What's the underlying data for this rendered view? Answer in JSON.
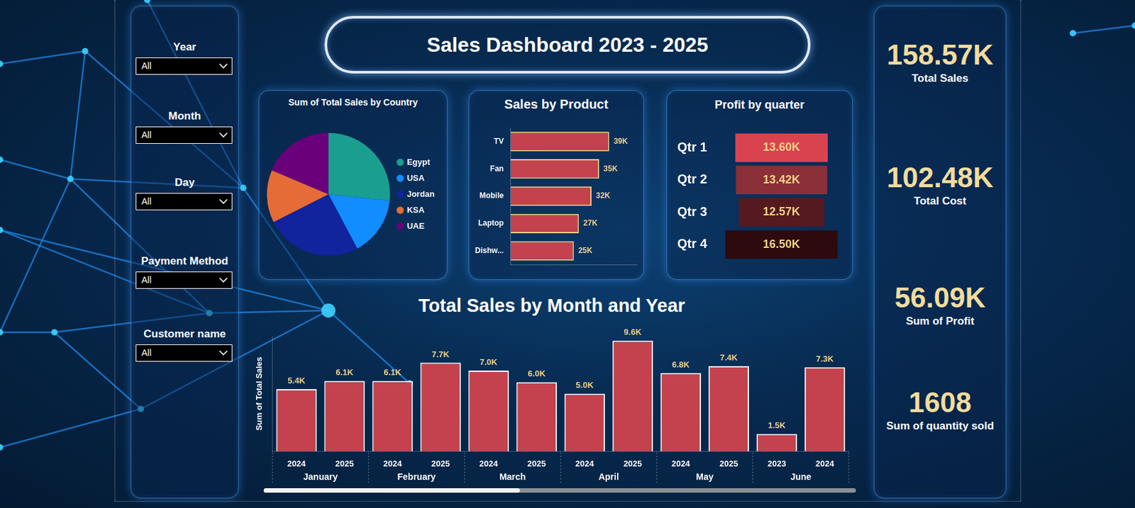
{
  "header": {
    "title": "Sales Dashboard 2023 - 2025"
  },
  "filters": [
    {
      "label": "Year",
      "value": "All"
    },
    {
      "label": "Month",
      "value": "All"
    },
    {
      "label": "Day",
      "value": "All"
    },
    {
      "label": "Payment Method",
      "value": "All"
    },
    {
      "label": "Customer name",
      "value": "All"
    }
  ],
  "kpis": [
    {
      "value": "158.57K",
      "label": "Total Sales"
    },
    {
      "value": "102.48K",
      "label": "Total Cost"
    },
    {
      "value": "56.09K",
      "label": "Sum of Profit"
    },
    {
      "value": "1608",
      "label": "Sum of quantity sold"
    }
  ],
  "chart_data": [
    {
      "type": "pie",
      "title": "Sum of Total Sales by Country",
      "categories": [
        "Egypt",
        "USA",
        "Jordan",
        "KSA",
        "UAE"
      ],
      "values": [
        42.3,
        24.7,
        40.1,
        22.0,
        29.5
      ],
      "colors": [
        "#1a9e8f",
        "#118dff",
        "#12239e",
        "#e66c37",
        "#6b007b"
      ],
      "legend": "right"
    },
    {
      "type": "bar",
      "title": "Sales by Product",
      "orientation": "horizontal",
      "categories": [
        "TV",
        "Fan",
        "Mobile",
        "Laptop",
        "Dishw..."
      ],
      "values": [
        39,
        35,
        32,
        27,
        25
      ],
      "value_labels": [
        "39K",
        "35K",
        "32K",
        "27K",
        "25K"
      ],
      "color": "#c4424e",
      "xlim": [
        0,
        50
      ],
      "tick_labels": "y",
      "grid": false,
      "data_labels": true
    },
    {
      "type": "funnel",
      "title": "Profit by quarter",
      "categories": [
        "Qtr 1",
        "Qtr 2",
        "Qtr 3",
        "Qtr 4"
      ],
      "values": [
        13.6,
        13.42,
        12.57,
        16.5
      ],
      "value_labels": [
        "13.60K",
        "13.42K",
        "12.57K",
        "16.50K"
      ],
      "colors": [
        "#d9434f",
        "#8b2f38",
        "#551a20",
        "#2c0a0d"
      ],
      "tick_labels": "y",
      "grid": false,
      "data_labels": true
    },
    {
      "type": "bar",
      "title": "Total Sales by Month and Year",
      "y_label": "Sum of Total Sales",
      "categories": [
        "2024",
        "2025",
        "2024",
        "2025",
        "2024",
        "2025",
        "2024",
        "2025",
        "2024",
        "2025",
        "2023",
        "2024"
      ],
      "groups": [
        {
          "label": "January",
          "size": 2
        },
        {
          "label": "February",
          "size": 2
        },
        {
          "label": "March",
          "size": 2
        },
        {
          "label": "April",
          "size": 2
        },
        {
          "label": "May",
          "size": 2
        },
        {
          "label": "June",
          "size": 2
        }
      ],
      "values": [
        5.4,
        6.1,
        6.1,
        7.7,
        7.0,
        6.0,
        5.0,
        9.6,
        6.8,
        7.4,
        1.5,
        7.3
      ],
      "value_labels": [
        "5.4K",
        "6.1K",
        "6.1K",
        "7.7K",
        "7.0K",
        "6.0K",
        "5.0K",
        "9.6K",
        "6.8K",
        "7.4K",
        "1.5K",
        "7.3K"
      ],
      "color": "#c4424e",
      "ylim": [
        0,
        10
      ],
      "tick_labels": "x",
      "grid": false,
      "data_labels": true
    }
  ]
}
